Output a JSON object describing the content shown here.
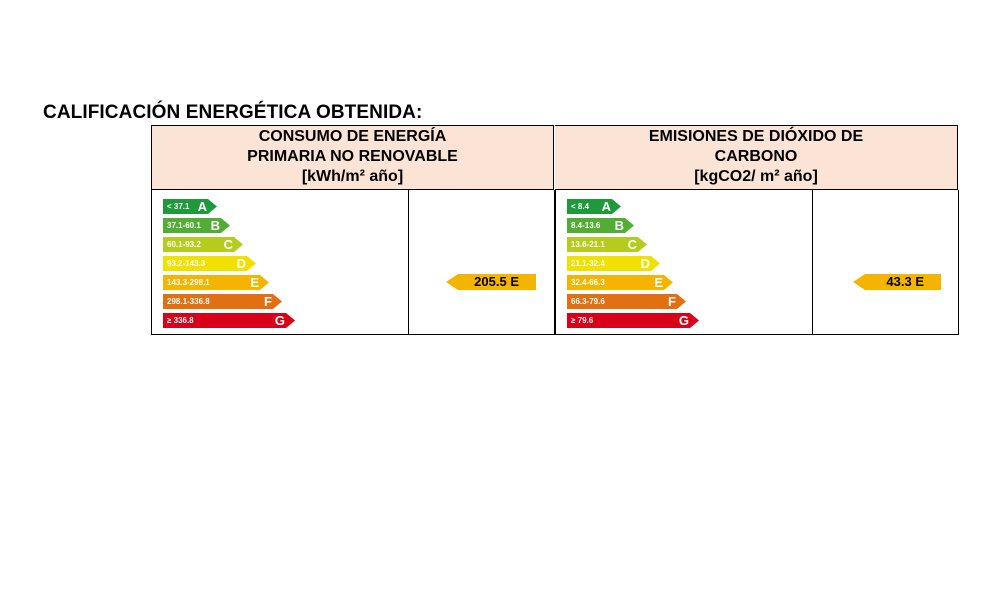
{
  "title": "CALIFICACIÓN ENERGÉTICA OBTENIDA:",
  "colors": {
    "A": "#1e9a3c",
    "B": "#52ad34",
    "C": "#b5cb1e",
    "D": "#f0e100",
    "E": "#f4b400",
    "F": "#e36f13",
    "G": "#d9001a",
    "header_bg": "#fbe4d5"
  },
  "energy": {
    "header_line1": "CONSUMO DE ENERGÍA",
    "header_line2": "PRIMARIA NO RENOVABLE",
    "header_line3": "[kWh/m² año]",
    "scale": [
      {
        "range": "< 37.1",
        "letter": "A"
      },
      {
        "range": "37.1-60.1",
        "letter": "B"
      },
      {
        "range": "60.1-93.2",
        "letter": "C"
      },
      {
        "range": "93.2-143.3",
        "letter": "D"
      },
      {
        "range": "143.3-298.1",
        "letter": "E"
      },
      {
        "range": "298.1-336.8",
        "letter": "F"
      },
      {
        "range": "≥ 336.8",
        "letter": "G"
      }
    ],
    "value_label": "205.5 E",
    "rating": "E"
  },
  "emissions": {
    "header_line1": "EMISIONES DE DIÓXIDO DE",
    "header_line2": "CARBONO",
    "header_line3": "[kgCO2/ m² año]",
    "scale": [
      {
        "range": "< 8.4",
        "letter": "A"
      },
      {
        "range": "8.4-13.6",
        "letter": "B"
      },
      {
        "range": "13.6-21.1",
        "letter": "C"
      },
      {
        "range": "21.1-32.4",
        "letter": "D"
      },
      {
        "range": "32.4-66.3",
        "letter": "E"
      },
      {
        "range": "66.3-79.6",
        "letter": "F"
      },
      {
        "range": "≥ 79.6",
        "letter": "G"
      }
    ],
    "value_label": "43.3 E",
    "rating": "E"
  }
}
